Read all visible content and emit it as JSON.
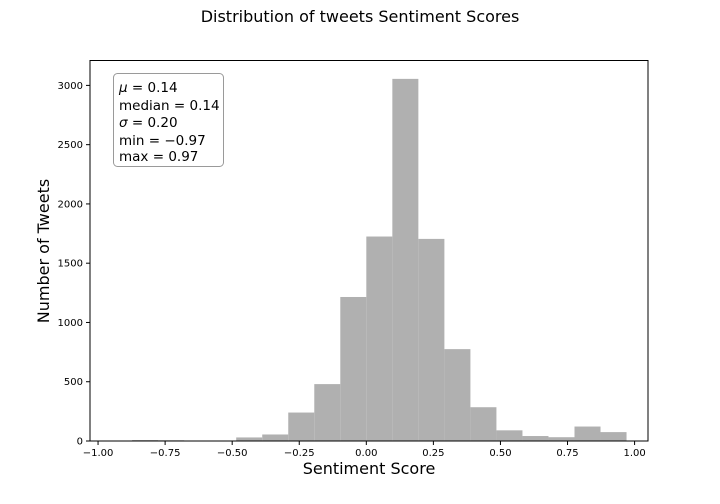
{
  "chart_data": {
    "type": "bar",
    "subtype": "histogram",
    "title": "Distribution of tweets Sentiment Scores",
    "xlabel": "Sentiment Score",
    "ylabel": "Number of Tweets",
    "bin_edges": [
      -0.97,
      -0.873,
      -0.776,
      -0.679,
      -0.582,
      -0.485,
      -0.388,
      -0.291,
      -0.194,
      -0.097,
      0.0,
      0.097,
      0.194,
      0.291,
      0.388,
      0.485,
      0.582,
      0.679,
      0.776,
      0.873,
      0.97
    ],
    "counts": [
      2,
      8,
      6,
      4,
      4,
      30,
      55,
      240,
      480,
      1215,
      1725,
      3055,
      1705,
      775,
      285,
      90,
      42,
      32,
      122,
      75
    ],
    "xlim": [
      -1.03,
      1.05
    ],
    "ylim": [
      0,
      3210
    ],
    "xticks": [
      -1.0,
      -0.75,
      -0.5,
      -0.25,
      0.0,
      0.25,
      0.5,
      0.75,
      1.0
    ],
    "xtick_labels": [
      "−1.00",
      "−0.75",
      "−0.50",
      "−0.25",
      "0.00",
      "0.25",
      "0.50",
      "0.75",
      "1.00"
    ],
    "yticks": [
      0,
      500,
      1000,
      1500,
      2000,
      2500,
      3000
    ],
    "ytick_labels": [
      "0",
      "500",
      "1000",
      "1500",
      "2000",
      "2500",
      "3000"
    ],
    "bar_color": "#b0b0b0",
    "grid": false,
    "stats_box": {
      "position": "top-left",
      "mu": "0.14",
      "median": "0.14",
      "sigma": "0.20",
      "min": "−0.97",
      "max": "0.97"
    }
  }
}
